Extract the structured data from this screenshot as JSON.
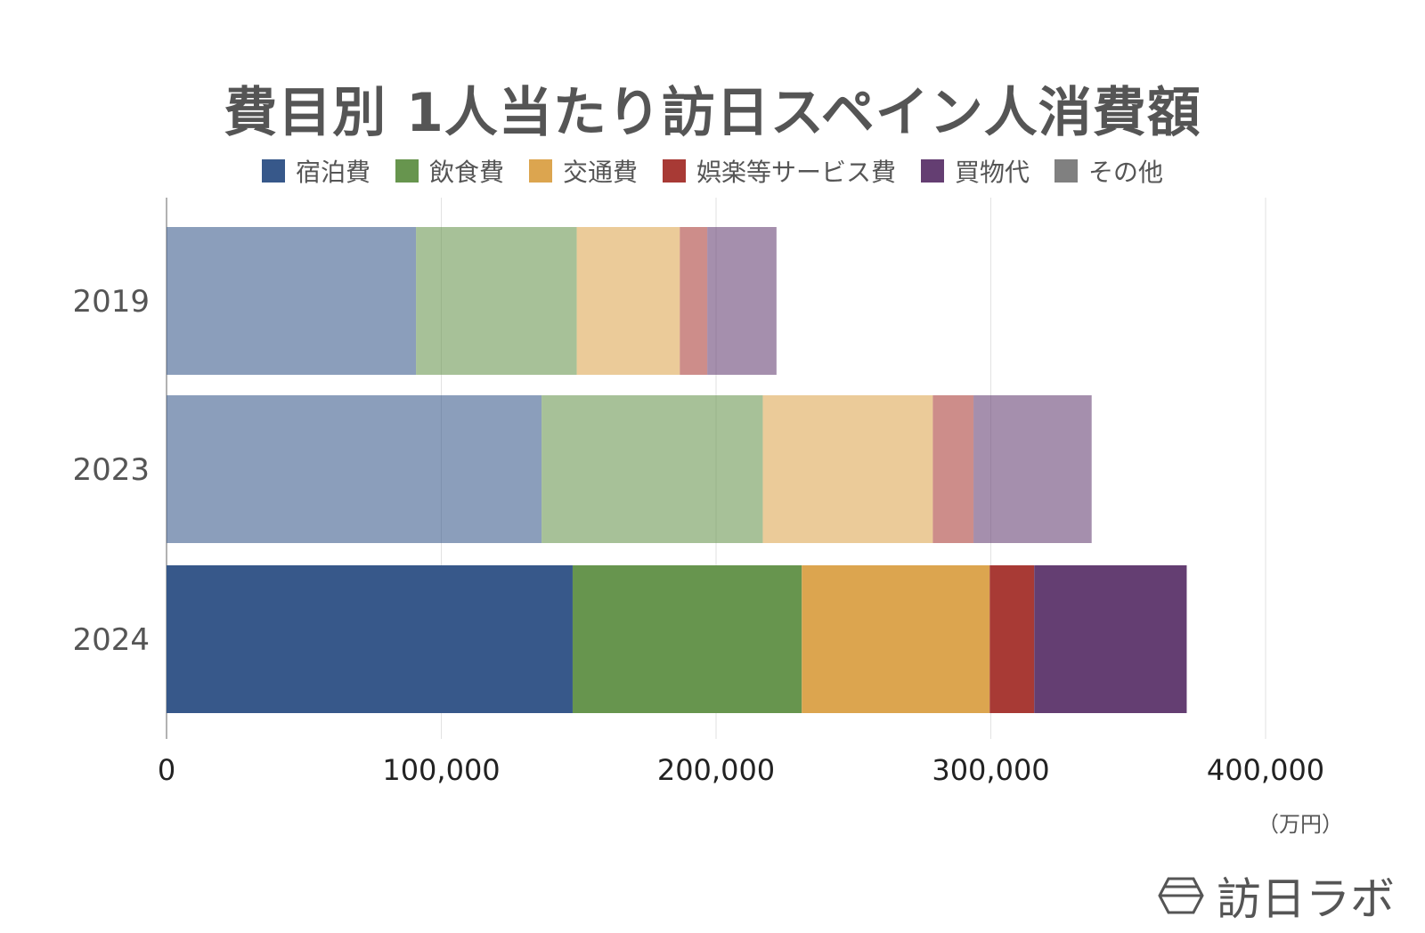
{
  "chart_data": {
    "type": "bar",
    "orientation": "horizontal",
    "stacked": true,
    "title": "費目別 1人当たり訪日スペイン人消費額",
    "categories": [
      "2019",
      "2023",
      "2024"
    ],
    "series": [
      {
        "name": "宿泊費",
        "color": "#37588a",
        "values": [
          90800,
          136500,
          147800
        ]
      },
      {
        "name": "飲食費",
        "color": "#67954e",
        "values": [
          58500,
          80500,
          83400
        ]
      },
      {
        "name": "交通費",
        "color": "#dca54f",
        "values": [
          37500,
          61900,
          68400
        ]
      },
      {
        "name": "娯楽等サービス費",
        "color": "#a83a35",
        "values": [
          10000,
          14800,
          16200
        ]
      },
      {
        "name": "買物代",
        "color": "#643e72",
        "values": [
          25200,
          43000,
          55500
        ]
      },
      {
        "name": "その他",
        "color": "#808080",
        "values": [
          0,
          0,
          0
        ]
      }
    ],
    "highlight_category": "2024",
    "faded_opacity": 0.58,
    "xlim": [
      0,
      400000
    ],
    "xticks": [
      0,
      100000,
      200000,
      300000,
      400000
    ],
    "xtick_labels": [
      "0",
      "100,000",
      "200,000",
      "300,000",
      "400,000"
    ],
    "unit_label": "（万円）",
    "grid": true,
    "legend_position": "top"
  },
  "logo_text": "訪日ラボ"
}
